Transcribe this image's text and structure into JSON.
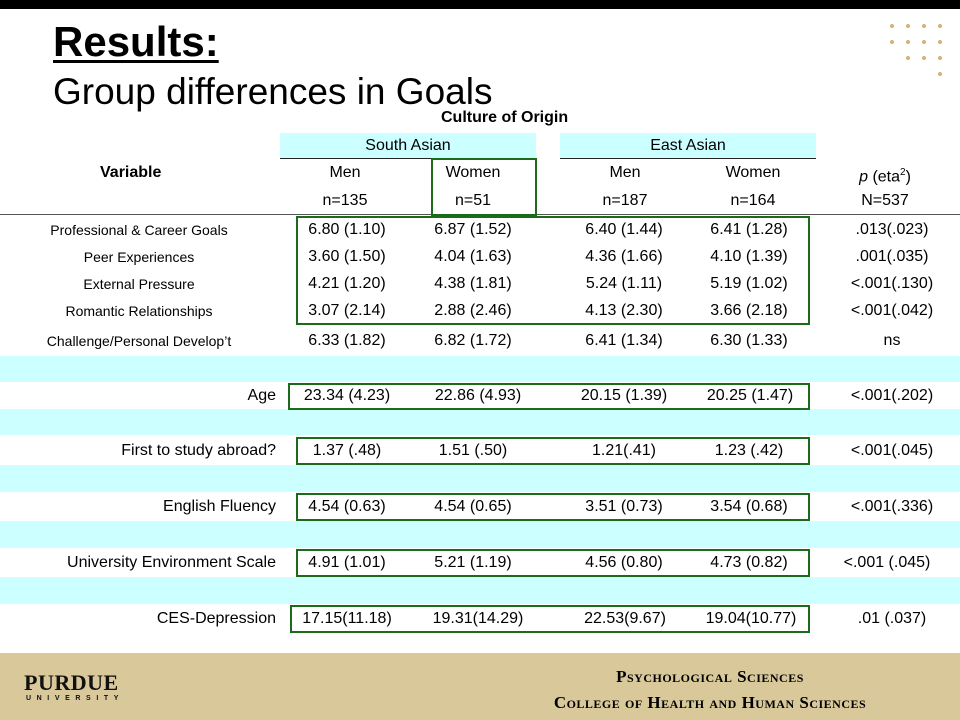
{
  "slide": {
    "title": "Results:",
    "subtitle": "Group differences in Goals"
  },
  "table": {
    "super_header": "Culture of Origin",
    "variable_header": "Variable",
    "groups": [
      "South Asian",
      "East Asian"
    ],
    "columns": [
      {
        "label": "Men",
        "n": "n=135"
      },
      {
        "label": "Women",
        "n": "n=51"
      },
      {
        "label": "Men",
        "n": "n=187"
      },
      {
        "label": "Women",
        "n": "n=164"
      }
    ],
    "p_header": {
      "prefix": "p",
      "middle": " (eta",
      "sup": "2",
      "suffix": ")",
      "n": "N=537"
    },
    "goal_rows": [
      {
        "label": "Professional & Career Goals",
        "values": [
          "6.80 (1.10)",
          "6.87 (1.52)",
          "6.40 (1.44)",
          "6.41 (1.28)"
        ],
        "p": ".013(.023)"
      },
      {
        "label": "Peer Experiences",
        "values": [
          "3.60 (1.50)",
          "4.04 (1.63)",
          "4.36 (1.66)",
          "4.10 (1.39)"
        ],
        "p": ".001(.035)"
      },
      {
        "label": "External Pressure",
        "values": [
          "4.21 (1.20)",
          "4.38 (1.81)",
          "5.24 (1.11)",
          "5.19 (1.02)"
        ],
        "p": "<.001(.130)"
      },
      {
        "label": "Romantic Relationships",
        "values": [
          "3.07 (2.14)",
          "2.88 (2.46)",
          "4.13 (2.30)",
          "3.66 (2.18)"
        ],
        "p": "<.001(.042)"
      },
      {
        "label": "Challenge/Personal Develop’t",
        "values": [
          "6.33 (1.82)",
          "6.82 (1.72)",
          "6.41 (1.34)",
          "6.30 (1.33)"
        ],
        "p": "ns"
      }
    ],
    "other_rows": [
      {
        "label": "Age",
        "values": [
          "23.34 (4.23)",
          "22.86 (4.93)",
          "20.15 (1.39)",
          "20.25 (1.47)"
        ],
        "p": "<.001(.202)"
      },
      {
        "label": "First to study abroad?",
        "values": [
          "1.37 (.48)",
          "1.51 (.50)",
          "1.21(.41)",
          "1.23 (.42)"
        ],
        "p": "<.001(.045)"
      },
      {
        "label": "English Fluency",
        "values": [
          "4.54 (0.63)",
          "4.54 (0.65)",
          "3.51 (0.73)",
          "3.54 (0.68)"
        ],
        "p": "<.001(.336)"
      },
      {
        "label": "University Environment Scale",
        "values": [
          "4.91 (1.01)",
          "5.21 (1.19)",
          "4.56 (0.80)",
          "4.73 (0.82)"
        ],
        "p": "<.001 (.045)"
      },
      {
        "label": "CES-Depression",
        "values": [
          "17.15(11.18)",
          "19.31(14.29)",
          "22.53(9.67)",
          "19.04(10.77)"
        ],
        "p": ".01 (.037)"
      }
    ]
  },
  "footer": {
    "logo_main": "PURDUE",
    "logo_sub": "UNIVERSITY",
    "dept_line1": "Psychological Sciences",
    "dept_line2": "College of Health and Human Sciences"
  },
  "colors": {
    "band": "#ccffff",
    "highlight_box": "#1a6b1a",
    "footer_bg": "#d8c89a",
    "dot_gold": "#d6b36a"
  }
}
